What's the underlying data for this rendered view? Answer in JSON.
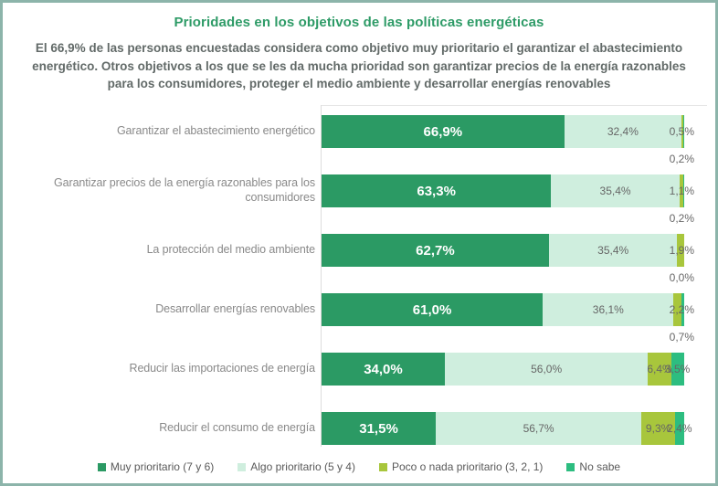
{
  "header": {
    "title": "Prioridades en los objetivos de las políticas energéticas",
    "subtitle": "El 66,9% de las personas encuestadas considera como objetivo muy prioritario el garantizar el abastecimiento energético. Otros objetivos a los que se les da mucha prioridad son garantizar precios de la energía razonables para los consumidores, proteger el medio ambiente y desarrollar energías renovables"
  },
  "colors": {
    "card_border": "#8CB4AA",
    "title": "#2E9B67",
    "subtitle": "#626A68",
    "category_label": "#898989",
    "value_label": "#666666",
    "value_label_inverse": "#FFFFFF",
    "axis": "#DCDCDC"
  },
  "chart_data": {
    "type": "bar",
    "orientation": "horizontal",
    "stacked": true,
    "title": "Prioridades en los objetivos de las políticas energéticas",
    "xlabel": "",
    "ylabel": "",
    "xlim": [
      0,
      100
    ],
    "value_unit": "%",
    "decimal_separator": ",",
    "grid": false,
    "legend_position": "bottom",
    "categories": [
      "Garantizar el abastecimiento energético",
      "Garantizar precios de la energía razonables para los consumidores",
      "La protección del medio ambiente",
      "Desarrollar energías renovables",
      "Reducir las importaciones de energía",
      "Reducir el consumo de energía"
    ],
    "series": [
      {
        "name": "Muy prioritario (7 y 6)",
        "color": "#2B9A64",
        "values": [
          66.9,
          63.3,
          62.7,
          61.0,
          34.0,
          31.5
        ]
      },
      {
        "name": "Algo prioritario (5 y 4)",
        "color": "#CFEEDE",
        "values": [
          32.4,
          35.4,
          35.4,
          36.1,
          56.0,
          56.7
        ]
      },
      {
        "name": "Poco o nada prioritario (3, 2, 1)",
        "color": "#A8C63C",
        "values": [
          0.5,
          1.1,
          1.9,
          2.2,
          6.4,
          9.3
        ]
      },
      {
        "name": "No sabe",
        "color": "#2DBD80",
        "values": [
          0.2,
          0.2,
          0.0,
          0.7,
          3.5,
          2.4
        ]
      }
    ]
  }
}
